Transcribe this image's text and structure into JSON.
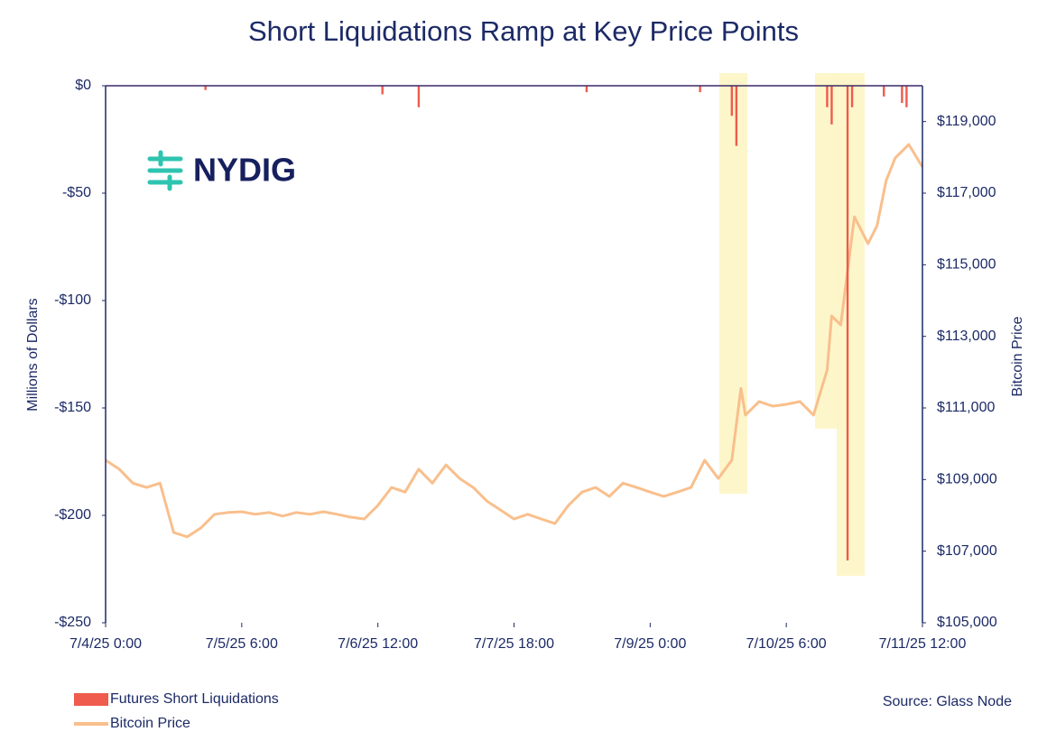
{
  "chart_data": {
    "type": "combo",
    "title": "Short Liquidations Ramp at Key Price Points",
    "logo": "NYDIG",
    "source": "Source: Glass Node",
    "ylabel": "Millions of Dollars",
    "y2label": "Bitcoin Price",
    "xlim": [
      "2025-07-04T00:00",
      "2025-07-11T12:00"
    ],
    "xticks": [
      {
        "value": "2025-07-04T00:00",
        "label": "7/4/25 0:00"
      },
      {
        "value": "2025-07-05T06:00",
        "label": "7/5/25 6:00"
      },
      {
        "value": "2025-07-06T12:00",
        "label": "7/6/25 12:00"
      },
      {
        "value": "2025-07-07T18:00",
        "label": "7/7/25 18:00"
      },
      {
        "value": "2025-07-09T00:00",
        "label": "7/9/25 0:00"
      },
      {
        "value": "2025-07-10T06:00",
        "label": "7/10/25 6:00"
      },
      {
        "value": "2025-07-11T12:00",
        "label": "7/11/25 12:00"
      }
    ],
    "ylim": [
      -250,
      0
    ],
    "yticks": [
      {
        "value": 0,
        "label": "$0"
      },
      {
        "value": -50,
        "label": "-$50"
      },
      {
        "value": -100,
        "label": "-$100"
      },
      {
        "value": -150,
        "label": "-$150"
      },
      {
        "value": -200,
        "label": "-$200"
      },
      {
        "value": -250,
        "label": "-$250"
      }
    ],
    "y2lim": [
      105000,
      120000
    ],
    "y2ticks": [
      {
        "value": 105000,
        "label": "$105,000"
      },
      {
        "value": 107000,
        "label": "$107,000"
      },
      {
        "value": 109000,
        "label": "$109,000"
      },
      {
        "value": 111000,
        "label": "$111,000"
      },
      {
        "value": 113000,
        "label": "$113,000"
      },
      {
        "value": 115000,
        "label": "$115,000"
      },
      {
        "value": 117000,
        "label": "$117,000"
      },
      {
        "value": 119000,
        "label": "$119,000"
      }
    ],
    "series": [
      {
        "name": "Futures Short Liquidations",
        "type": "bar",
        "color": "#ef5b4c",
        "x": [
          "2025-07-04T22:00",
          "2025-07-06T13:00",
          "2025-07-06T21:00",
          "2025-07-08T10:00",
          "2025-07-09T11:00",
          "2025-07-09T18:00",
          "2025-07-09T19:00",
          "2025-07-10T15:00",
          "2025-07-10T16:00",
          "2025-07-10T19:30",
          "2025-07-10T20:30",
          "2025-07-11T03:30",
          "2025-07-11T07:30",
          "2025-07-11T08:30"
        ],
        "values": [
          -2,
          -4,
          -10,
          -3,
          -3,
          -14,
          -28,
          -10,
          -18,
          -221,
          -10,
          -5,
          -8,
          -10
        ]
      },
      {
        "name": "Bitcoin Price",
        "type": "line",
        "axis": "y2",
        "color": "#f9bf8c",
        "x": [
          "2025-07-04T00:00",
          "2025-07-04T03:00",
          "2025-07-04T06:00",
          "2025-07-04T09:00",
          "2025-07-04T12:00",
          "2025-07-04T15:00",
          "2025-07-04T18:00",
          "2025-07-04T21:00",
          "2025-07-05T00:00",
          "2025-07-05T03:00",
          "2025-07-05T06:00",
          "2025-07-05T09:00",
          "2025-07-05T12:00",
          "2025-07-05T15:00",
          "2025-07-05T18:00",
          "2025-07-05T21:00",
          "2025-07-06T00:00",
          "2025-07-06T03:00",
          "2025-07-06T06:00",
          "2025-07-06T09:00",
          "2025-07-06T12:00",
          "2025-07-06T15:00",
          "2025-07-06T18:00",
          "2025-07-06T21:00",
          "2025-07-07T00:00",
          "2025-07-07T03:00",
          "2025-07-07T06:00",
          "2025-07-07T09:00",
          "2025-07-07T12:00",
          "2025-07-07T15:00",
          "2025-07-07T18:00",
          "2025-07-07T21:00",
          "2025-07-08T00:00",
          "2025-07-08T03:00",
          "2025-07-08T06:00",
          "2025-07-08T09:00",
          "2025-07-08T12:00",
          "2025-07-08T15:00",
          "2025-07-08T18:00",
          "2025-07-08T21:00",
          "2025-07-09T00:00",
          "2025-07-09T03:00",
          "2025-07-09T06:00",
          "2025-07-09T09:00",
          "2025-07-09T12:00",
          "2025-07-09T15:00",
          "2025-07-09T18:00",
          "2025-07-09T20:00",
          "2025-07-09T21:00",
          "2025-07-10T00:00",
          "2025-07-10T03:00",
          "2025-07-10T06:00",
          "2025-07-10T09:00",
          "2025-07-10T12:00",
          "2025-07-10T15:00",
          "2025-07-10T16:00",
          "2025-07-10T18:00",
          "2025-07-10T21:00",
          "2025-07-11T00:00",
          "2025-07-11T02:00",
          "2025-07-11T04:00",
          "2025-07-11T06:00",
          "2025-07-11T09:00",
          "2025-07-11T12:00"
        ],
        "values": [
          109540,
          109290,
          108900,
          108780,
          108900,
          107520,
          107400,
          107650,
          108030,
          108080,
          108100,
          108030,
          108080,
          107980,
          108080,
          108030,
          108100,
          108030,
          107950,
          107900,
          108280,
          108780,
          108650,
          109290,
          108900,
          109410,
          109030,
          108780,
          108400,
          108150,
          107900,
          108030,
          107900,
          107770,
          108280,
          108650,
          108780,
          108530,
          108900,
          108780,
          108650,
          108530,
          108650,
          108780,
          109540,
          109030,
          109540,
          111550,
          110800,
          111180,
          111050,
          111100,
          111180,
          110800,
          112060,
          113570,
          113320,
          116340,
          115590,
          116090,
          117350,
          117980,
          118360,
          117730
        ]
      }
    ]
  }
}
